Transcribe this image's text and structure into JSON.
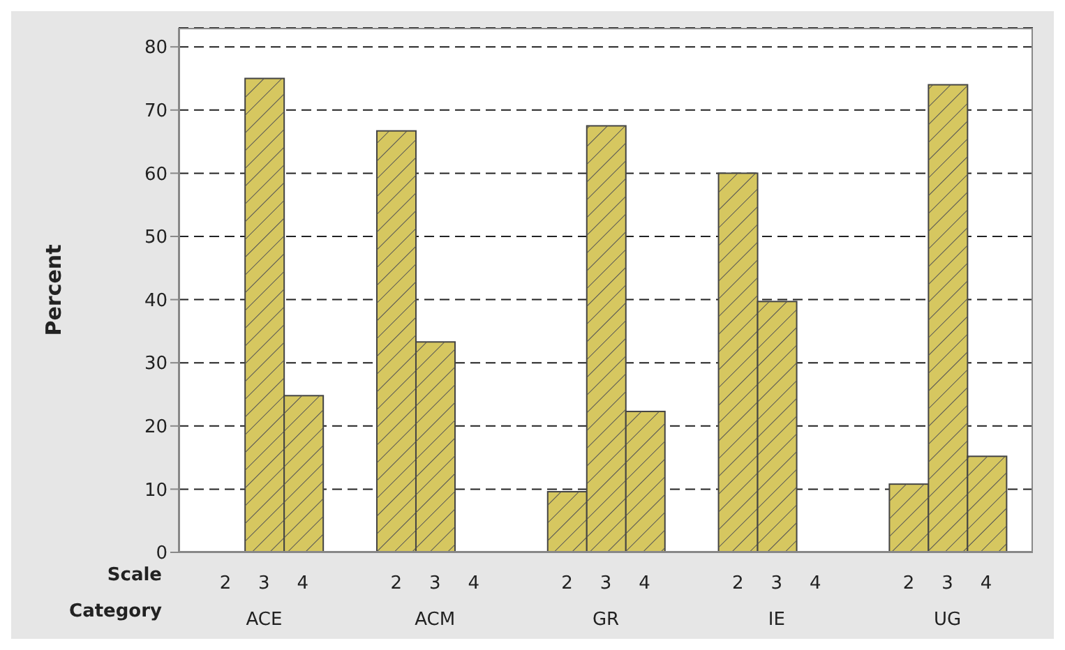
{
  "chart_data": {
    "type": "bar",
    "ylabel": "Percent",
    "xlabel": "Category",
    "annotations": [
      "Scale"
    ],
    "categories": [
      "ACE",
      "ACM",
      "GR",
      "IE",
      "UG"
    ],
    "series": [
      {
        "name": "2",
        "color": "#d6c760",
        "values": [
          0,
          66.7,
          9.6,
          60,
          10.8
        ]
      },
      {
        "name": "3",
        "color": "#d6c760",
        "values": [
          75,
          33.3,
          67.5,
          39.7,
          74
        ]
      },
      {
        "name": "4",
        "color": "#d6c760",
        "values": [
          24.8,
          0,
          22.3,
          0,
          15.2
        ]
      }
    ],
    "ylim": [
      0,
      83
    ],
    "yticks": [
      0,
      10,
      20,
      30,
      40,
      50,
      60,
      70,
      80
    ],
    "grid": "y"
  }
}
